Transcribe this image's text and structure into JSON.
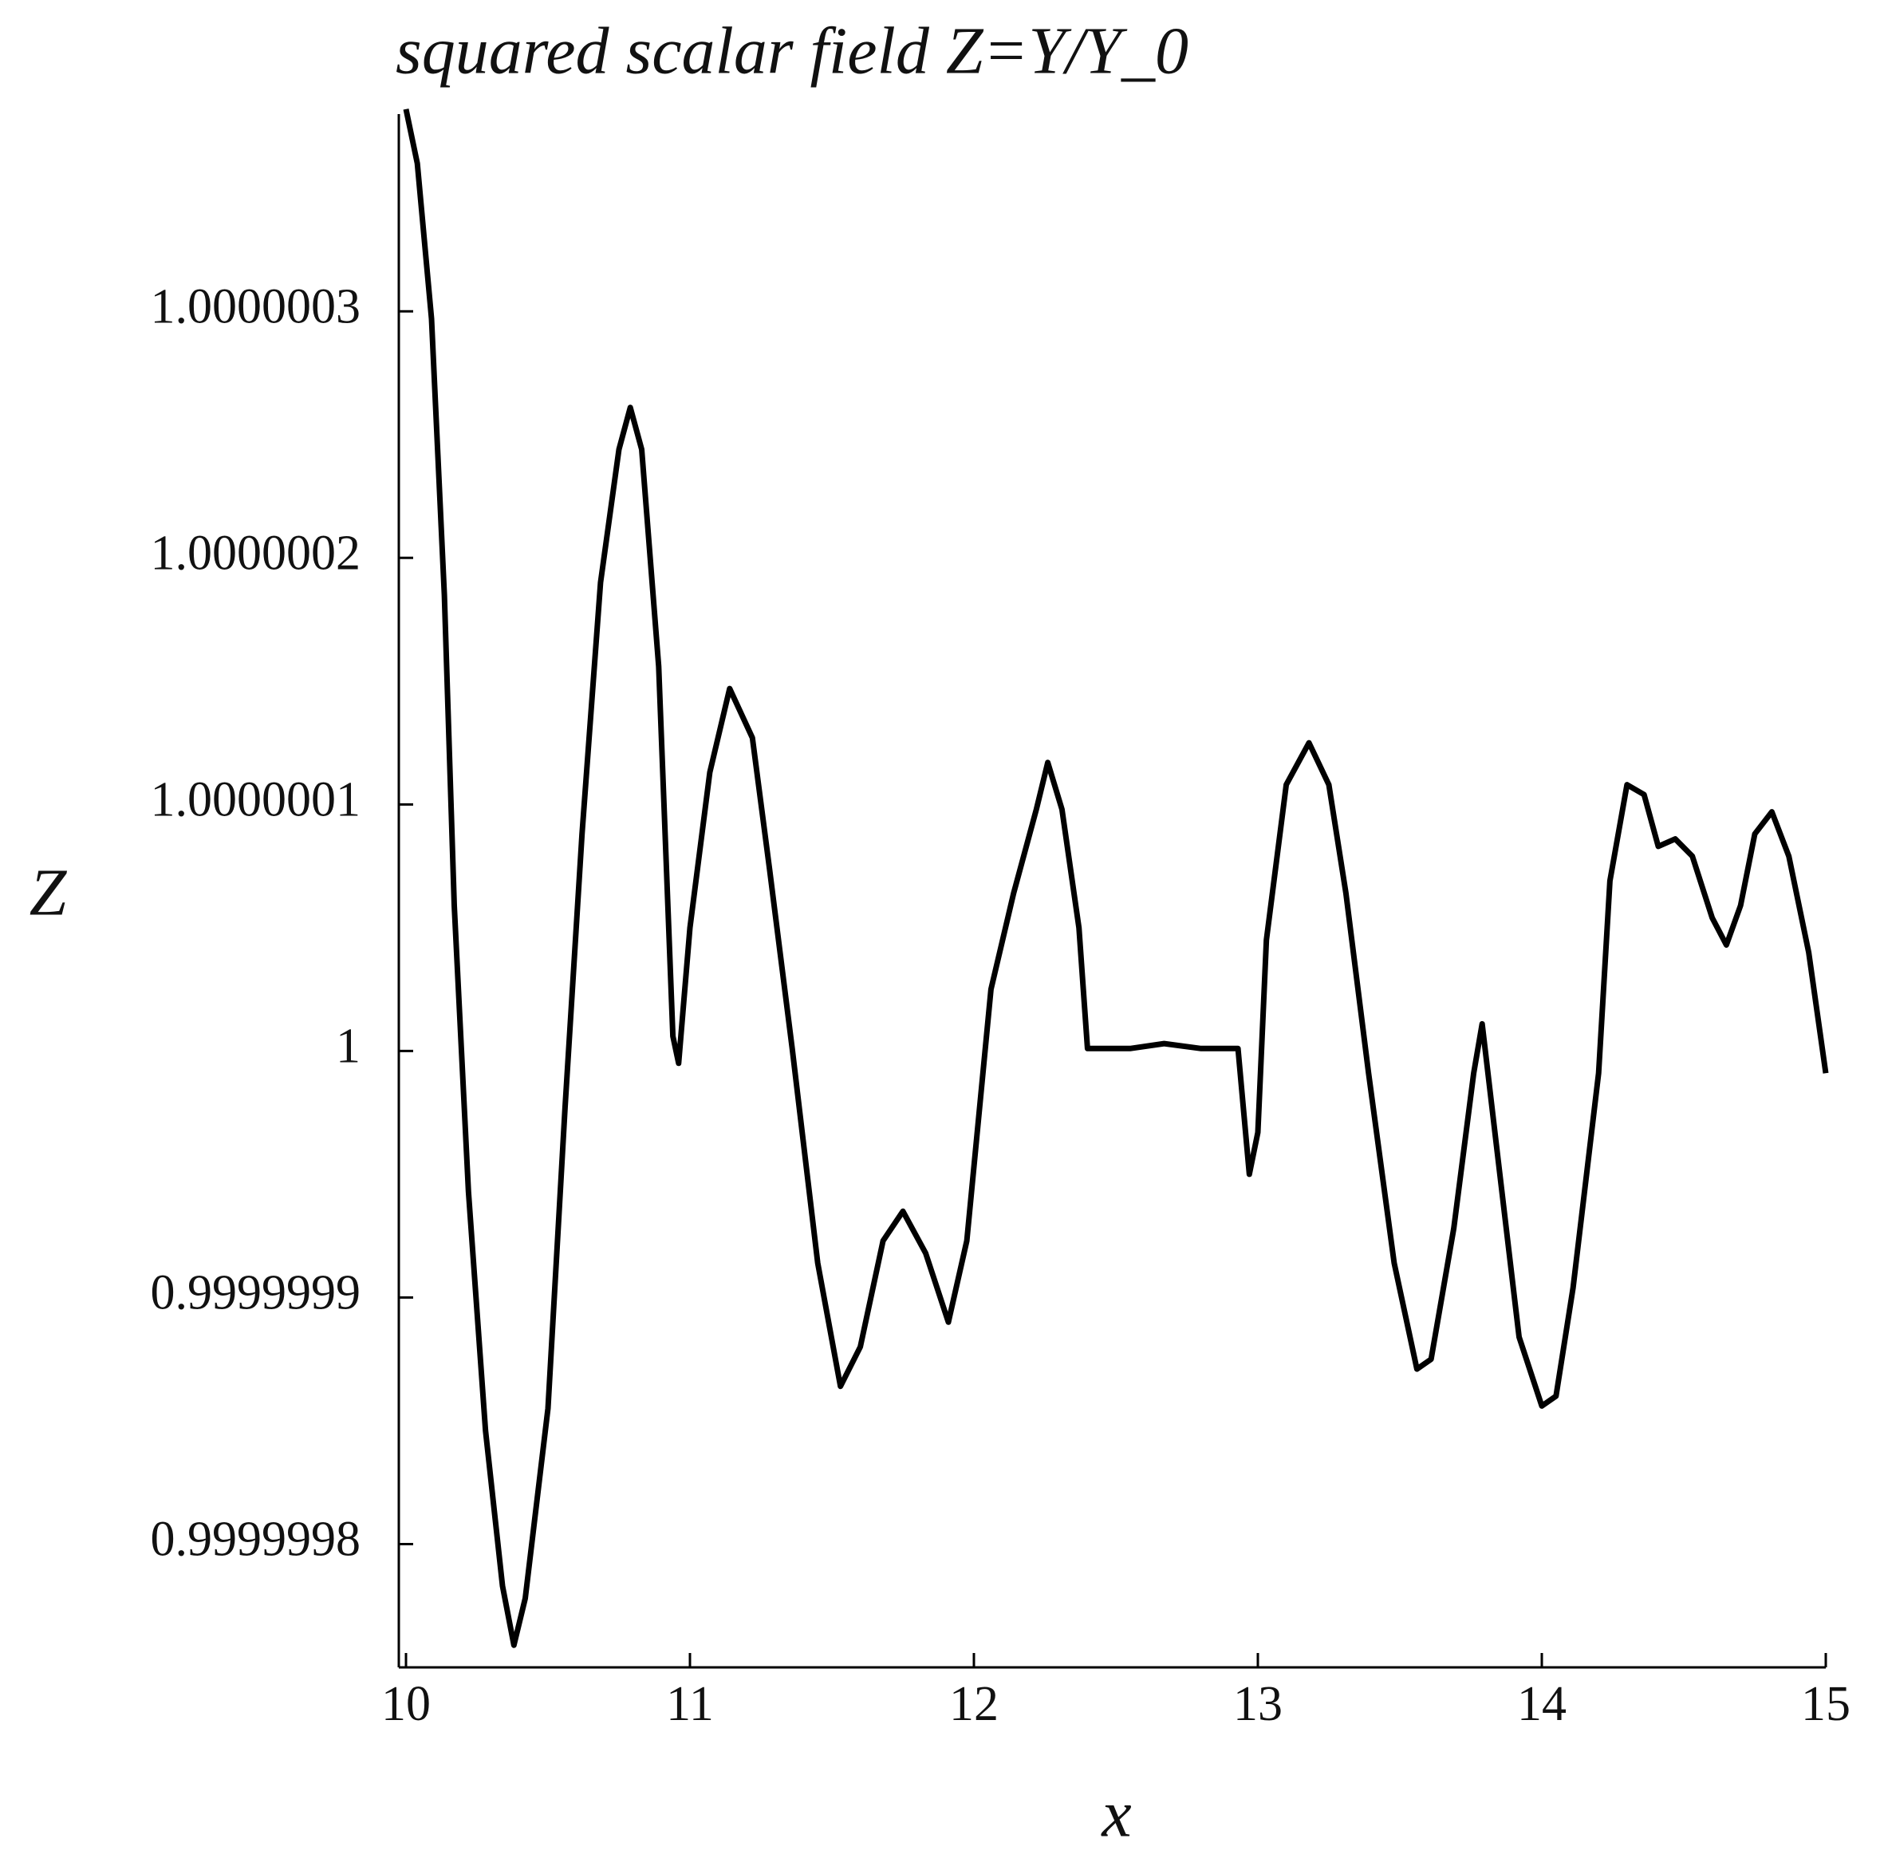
{
  "chart_data": {
    "type": "line",
    "title": "squared scalar field Z=Y/Y_0",
    "x_label": "x",
    "y_label": "Z",
    "color": "#000000",
    "x": [
      10.0,
      10.04,
      10.09,
      10.135,
      10.17,
      10.22,
      10.28,
      10.34,
      10.38,
      10.42,
      10.5,
      10.56,
      10.62,
      10.685,
      10.75,
      10.79,
      10.83,
      10.89,
      10.94,
      10.96,
      11.0,
      11.07,
      11.14,
      11.22,
      11.28,
      11.36,
      11.45,
      11.53,
      11.6,
      11.68,
      11.75,
      11.83,
      11.91,
      11.975,
      12.06,
      12.14,
      12.22,
      12.26,
      12.31,
      12.37,
      12.4,
      12.55,
      12.67,
      12.8,
      12.905,
      12.93,
      12.97,
      13.0,
      13.03,
      13.1,
      13.18,
      13.25,
      13.31,
      13.39,
      13.48,
      13.56,
      13.61,
      13.69,
      13.76,
      13.79,
      13.84,
      13.92,
      14.0,
      14.05,
      14.11,
      14.2,
      14.24,
      14.3,
      14.36,
      14.41,
      14.47,
      14.53,
      14.6,
      14.65,
      14.7,
      14.75,
      14.81,
      14.87,
      14.94,
      15.0
    ],
    "values": [
      1.000000382,
      1.00000036,
      1.000000297,
      1.000000185,
      1.000000059,
      0.999999943,
      0.999999846,
      0.999999783,
      0.999999759,
      0.999999778,
      0.999999855,
      0.999999977,
      1.000000088,
      1.00000019,
      1.000000244,
      1.000000261,
      1.000000244,
      1.000000156,
      1.000000006,
      0.999999995,
      1.00000005,
      1.000000113,
      1.000000147,
      1.000000127,
      1.000000074,
      1.000000001,
      0.999999914,
      0.999999864,
      0.99999988,
      0.999999923,
      0.999999935,
      0.999999918,
      0.99999989,
      0.999999923,
      1.000000025,
      1.000000064,
      1.000000098,
      1.000000117,
      1.000000098,
      1.00000005,
      1.000000001,
      1.000000001,
      1.000000003,
      1.000000001,
      1.000000001,
      1.000000001,
      0.99999995,
      0.999999967,
      1.000000045,
      1.000000108,
      1.000000125,
      1.000000108,
      1.000000064,
      0.999999991,
      0.999999914,
      0.999999871,
      0.999999875,
      0.999999928,
      0.999999991,
      1.000000011,
      0.999999962,
      0.999999884,
      0.999999856,
      0.99999986,
      0.999999904,
      0.999999991,
      1.000000069,
      1.000000108,
      1.000000104,
      1.000000083,
      1.000000086,
      1.000000079,
      1.000000054,
      1.000000043,
      1.000000059,
      1.000000088,
      1.000000097,
      1.000000079,
      1.00000004,
      0.999999991
    ],
    "xlim": [
      10,
      15
    ],
    "xticks": [
      10,
      11,
      12,
      13,
      14,
      15
    ],
    "ylim": [
      0.99999975,
      1.00000038
    ],
    "yticks": [
      0.9999998,
      0.9999999,
      1,
      1.0000001,
      1.0000002,
      1.0000003
    ]
  }
}
